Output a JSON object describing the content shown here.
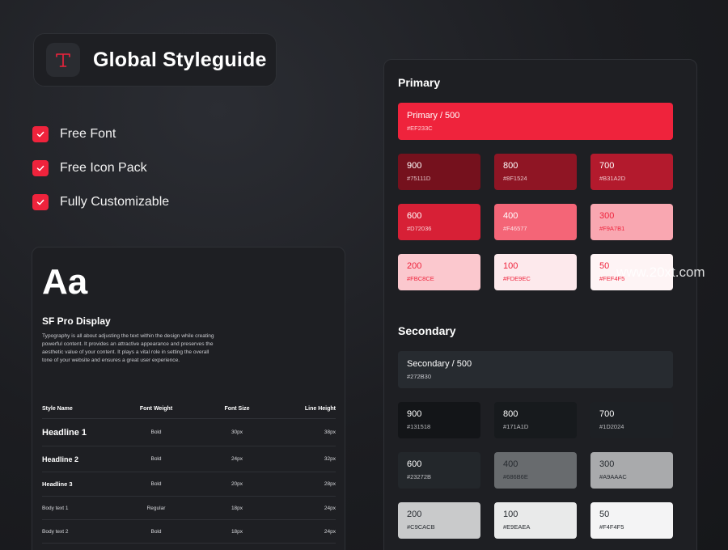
{
  "header": {
    "title": "Global Styleguide",
    "logo_icon": "type-letter-t-icon",
    "accent": "#EF233C"
  },
  "features": [
    "Free Font",
    "Free Icon Pack",
    "Fully Customizable"
  ],
  "typography": {
    "sample": "Aa",
    "font_name": "SF Pro Display",
    "description": "Typography is all about adjusting the text within the design while creating powerful content. It provides an attractive appearance and preserves the aesthetic value of your content. It plays a vital role in setting the overall tone of your website and ensures a great user experience.",
    "columns": [
      "Style Name",
      "Font Weight",
      "Font Size",
      "Line Height"
    ],
    "rows": [
      {
        "name": "Headline 1",
        "weight": "Bold",
        "size": "30px",
        "line": "38px"
      },
      {
        "name": "Headline 2",
        "weight": "Bold",
        "size": "24px",
        "line": "32px"
      },
      {
        "name": "Headline 3",
        "weight": "Bold",
        "size": "20px",
        "line": "28px"
      },
      {
        "name": "Body text 1",
        "weight": "Regular",
        "size": "18px",
        "line": "24px"
      },
      {
        "name": "Body text 2",
        "weight": "Bold",
        "size": "18px",
        "line": "24px"
      }
    ]
  },
  "primary": {
    "title": "Primary",
    "main": {
      "name": "Primary / 500",
      "hex": "#EF233C"
    },
    "shades": [
      {
        "name": "900",
        "hex": "#75111D"
      },
      {
        "name": "800",
        "hex": "#8F1524"
      },
      {
        "name": "700",
        "hex": "#B31A2D"
      },
      {
        "name": "600",
        "hex": "#D72036"
      },
      {
        "name": "400",
        "hex": "#F46577"
      },
      {
        "name": "300",
        "hex": "#F9A7B1"
      },
      {
        "name": "200",
        "hex": "#FBC8CE"
      },
      {
        "name": "100",
        "hex": "#FDE9EC"
      },
      {
        "name": "50",
        "hex": "#FEF4F5"
      }
    ]
  },
  "secondary": {
    "title": "Secondary",
    "main": {
      "name": "Secondary / 500",
      "hex": "#272B30"
    },
    "shades": [
      {
        "name": "900",
        "hex": "#131518"
      },
      {
        "name": "800",
        "hex": "#171A1D"
      },
      {
        "name": "700",
        "hex": "#1D2024"
      },
      {
        "name": "600",
        "hex": "#23272B"
      },
      {
        "name": "400",
        "hex": "#686B6E"
      },
      {
        "name": "300",
        "hex": "#A9AAAC"
      },
      {
        "name": "200",
        "hex": "#C9CACB"
      },
      {
        "name": "100",
        "hex": "#E9EAEA"
      },
      {
        "name": "50",
        "hex": "#F4F4F5"
      }
    ]
  },
  "watermark": "www.20xt.com"
}
